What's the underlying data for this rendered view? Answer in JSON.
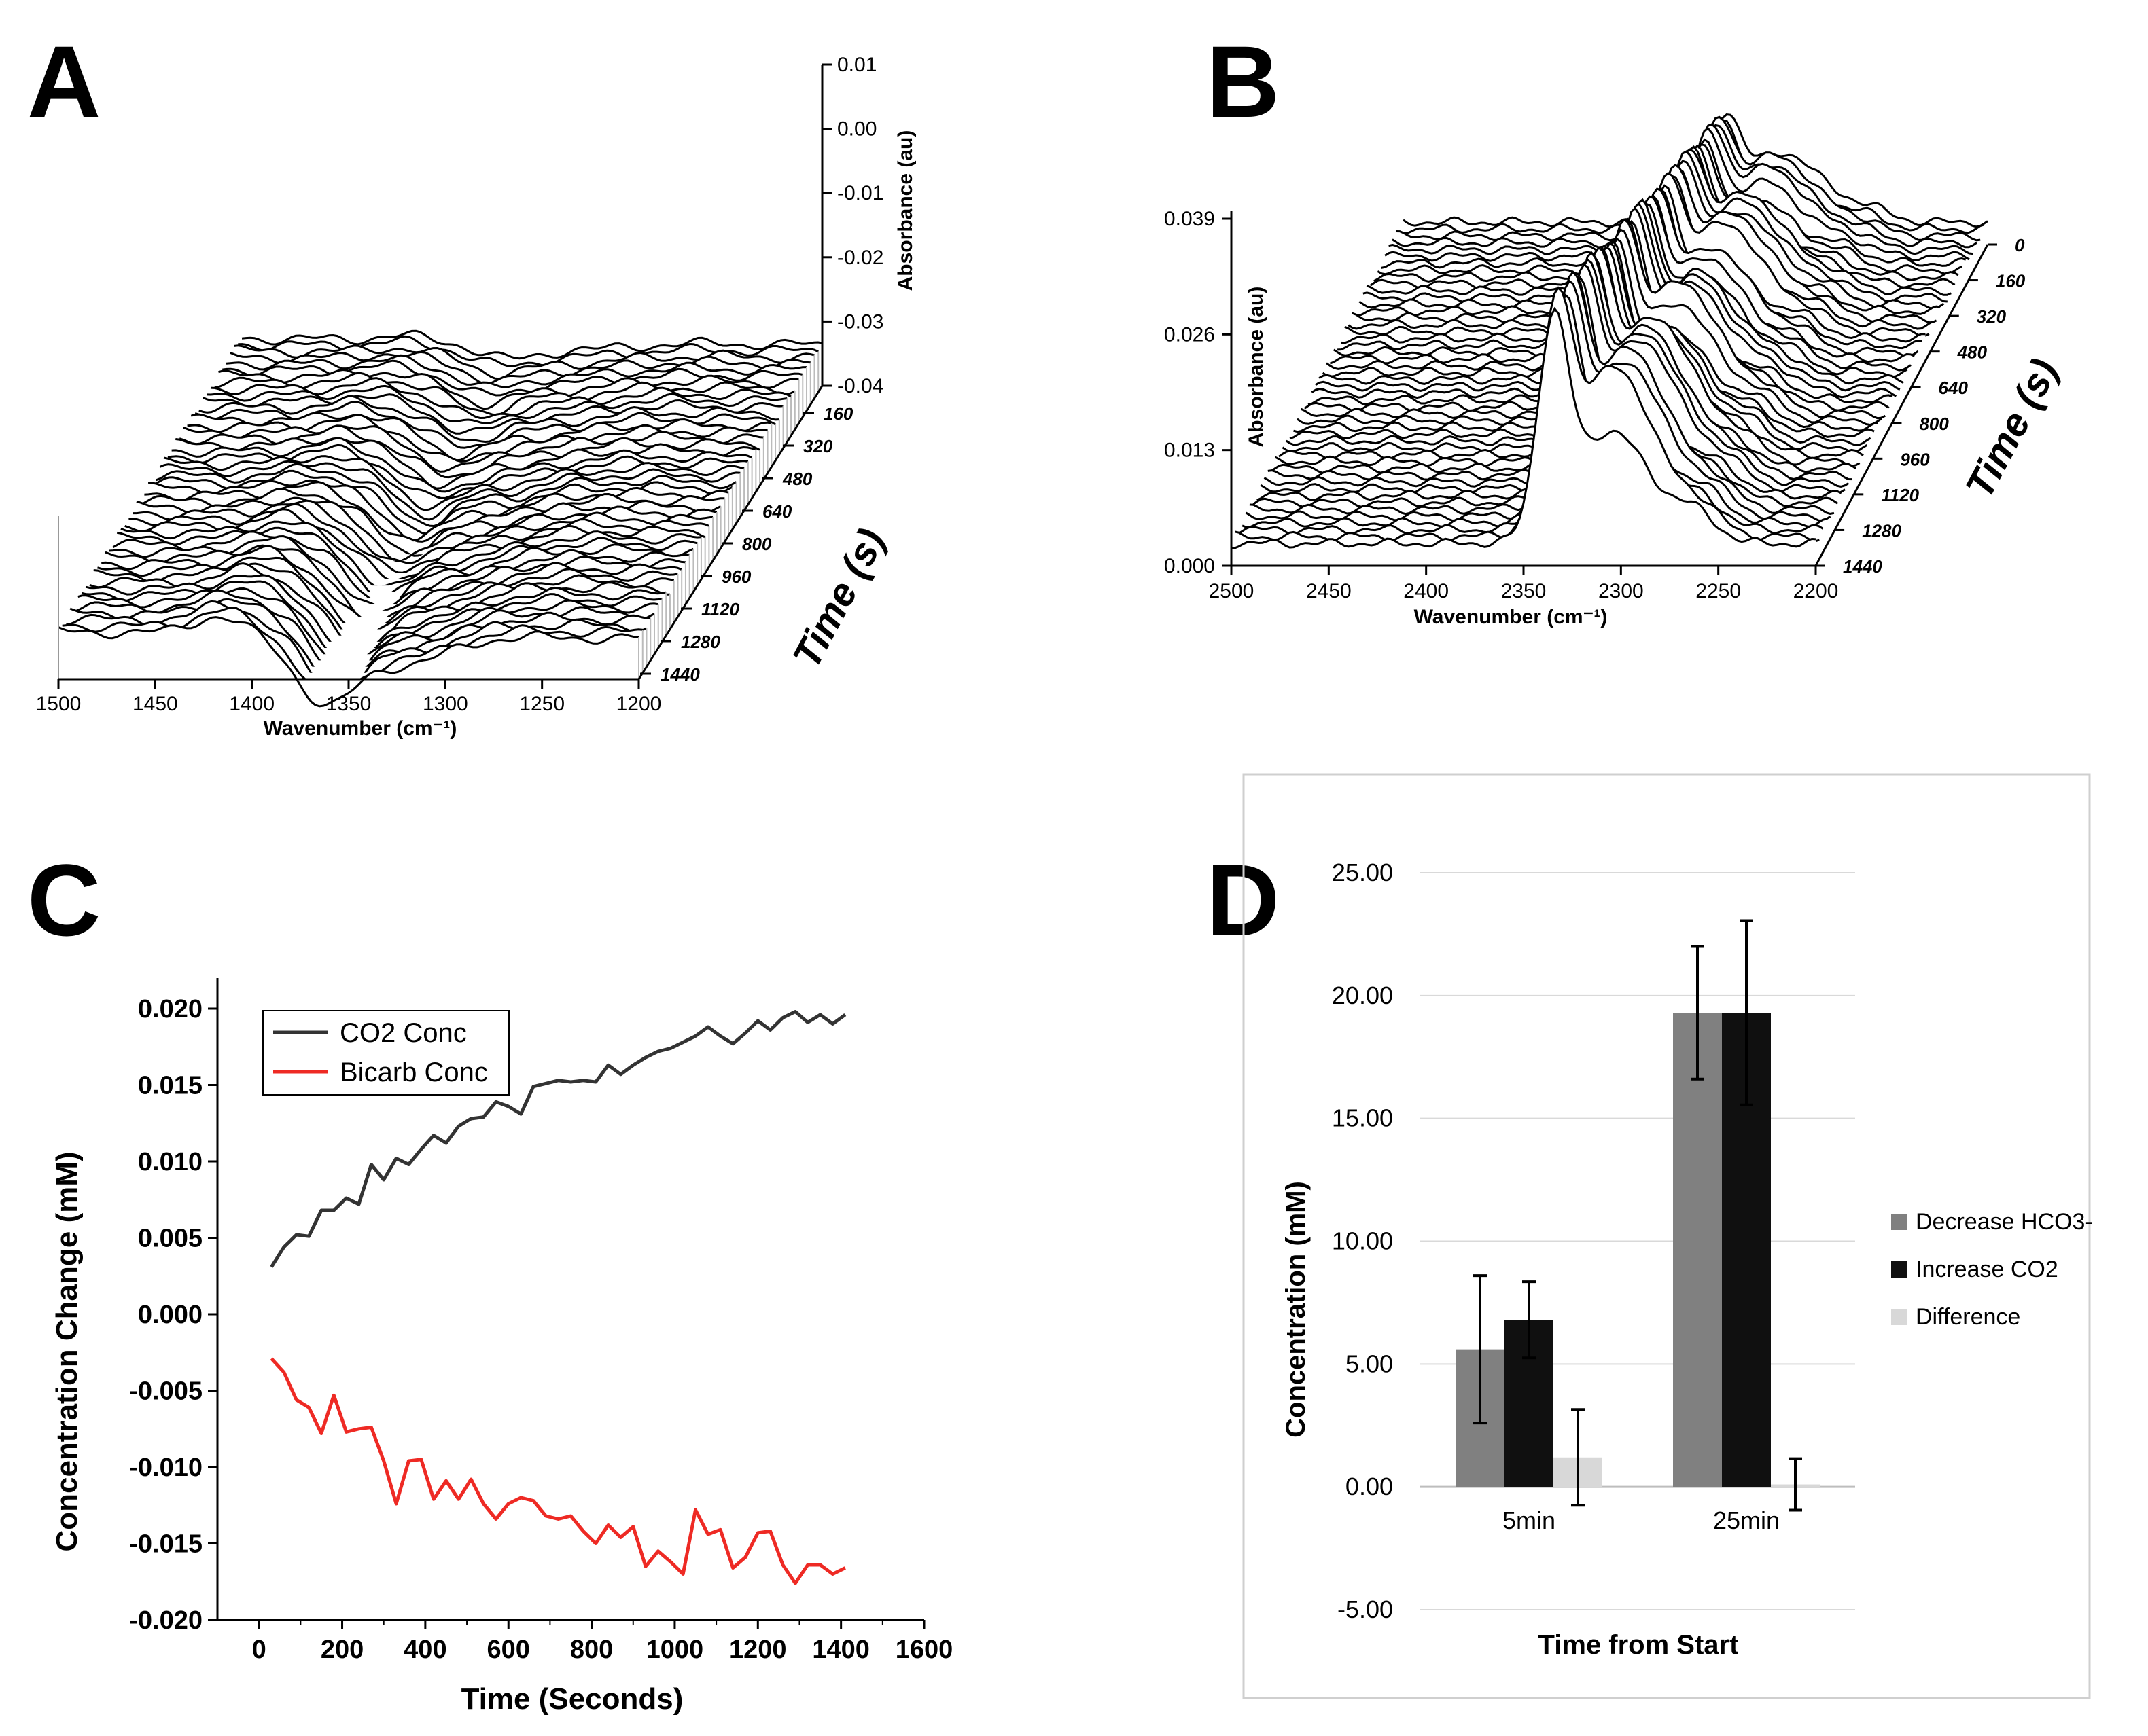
{
  "panels": {
    "A": "A",
    "B": "B",
    "C": "C",
    "D": "D"
  },
  "chart_data": [
    {
      "id": "A",
      "type": "line",
      "subtype": "3d-waterfall",
      "title": "",
      "xlabel": "Wavenumber (cm⁻¹)",
      "zlabel": "Absorbance (au)",
      "ylabel": "Time (s)",
      "xlim": [
        1500,
        1200
      ],
      "x_ticks": [
        "1500",
        "1450",
        "1400",
        "1350",
        "1300",
        "1250",
        "1200"
      ],
      "z_ticks": [
        "0.01",
        "0.00",
        "-0.01",
        "-0.02",
        "-0.03",
        "-0.04"
      ],
      "time_ticks": [
        "160",
        "320",
        "480",
        "640",
        "800",
        "960",
        "1120",
        "1280",
        "1440"
      ],
      "n_traces": 48,
      "features": "broad negative absorbance band near 1360 cm⁻¹ deepening over time"
    },
    {
      "id": "B",
      "type": "line",
      "subtype": "3d-waterfall",
      "title": "",
      "xlabel": "Wavenumber (cm⁻¹)",
      "zlabel": "Absorbance (au)",
      "ylabel": "Time (s)",
      "xlim": [
        2500,
        2200
      ],
      "x_ticks": [
        "2500",
        "2450",
        "2400",
        "2350",
        "2300",
        "2250",
        "2200"
      ],
      "z_ticks": [
        "0.039",
        "0.026",
        "0.013",
        "0.000"
      ],
      "time_ticks": [
        "0",
        "160",
        "320",
        "480",
        "640",
        "800",
        "960",
        "1120",
        "1280",
        "1440"
      ],
      "n_traces": 48,
      "features": "CO2 absorbance band near 2340 cm⁻¹ growing over time"
    },
    {
      "id": "C",
      "type": "line",
      "title": "",
      "xlabel": "Time (Seconds)",
      "ylabel": "Concentration Change (mM)",
      "xlim": [
        -100,
        1600
      ],
      "ylim": [
        -0.02,
        0.022
      ],
      "x_ticks": [
        "0",
        "200",
        "400",
        "600",
        "800",
        "1000",
        "1200",
        "1400",
        "1600"
      ],
      "y_ticks": [
        "0.020",
        "0.015",
        "0.010",
        "0.005",
        "0.000",
        "-0.005",
        "-0.010",
        "-0.015",
        "-0.020"
      ],
      "x": [
        30,
        60,
        90,
        120,
        150,
        180,
        210,
        240,
        270,
        300,
        330,
        360,
        390,
        420,
        450,
        480,
        510,
        540,
        570,
        600,
        630,
        660,
        690,
        720,
        750,
        780,
        810,
        840,
        870,
        900,
        930,
        960,
        990,
        1020,
        1050,
        1080,
        1110,
        1140,
        1170,
        1200,
        1230,
        1260,
        1290,
        1320,
        1350,
        1380,
        1410
      ],
      "series": [
        {
          "name": "CO2 Conc",
          "color": "#333333",
          "values": [
            0.0031,
            0.0044,
            0.0052,
            0.0051,
            0.0068,
            0.0068,
            0.0076,
            0.0072,
            0.0098,
            0.0088,
            0.0102,
            0.0098,
            0.0108,
            0.0117,
            0.0112,
            0.0123,
            0.0128,
            0.0129,
            0.0139,
            0.0136,
            0.0131,
            0.0149,
            0.0151,
            0.0153,
            0.0152,
            0.0153,
            0.0152,
            0.0163,
            0.0157,
            0.0163,
            0.0168,
            0.0172,
            0.0174,
            0.0178,
            0.0182,
            0.0188,
            0.0182,
            0.0177,
            0.0184,
            0.0192,
            0.0186,
            0.0194,
            0.0198,
            0.0191,
            0.0196,
            0.019,
            0.0196
          ]
        },
        {
          "name": "Bicarb Conc",
          "color": "#ee2a24",
          "values": [
            -0.0029,
            -0.0038,
            -0.0056,
            -0.0061,
            -0.0078,
            -0.0053,
            -0.0077,
            -0.0075,
            -0.0074,
            -0.0096,
            -0.0124,
            -0.0096,
            -0.0095,
            -0.0121,
            -0.0109,
            -0.0121,
            -0.0108,
            -0.0124,
            -0.0134,
            -0.0124,
            -0.012,
            -0.0122,
            -0.0132,
            -0.0134,
            -0.0132,
            -0.0142,
            -0.015,
            -0.0138,
            -0.0146,
            -0.0139,
            -0.0165,
            -0.0155,
            -0.0162,
            -0.017,
            -0.0128,
            -0.0144,
            -0.0141,
            -0.0166,
            -0.0159,
            -0.0143,
            -0.0142,
            -0.0164,
            -0.0176,
            -0.0164,
            -0.0164,
            -0.017,
            -0.0166
          ]
        }
      ],
      "legend": "top-left"
    },
    {
      "id": "D",
      "type": "bar",
      "title": "",
      "xlabel": "Time from Start",
      "ylabel": "Concentration (mM)",
      "ylim": [
        -5,
        25
      ],
      "y_ticks": [
        "25.00",
        "20.00",
        "15.00",
        "10.00",
        "5.00",
        "0.00",
        "-5.00"
      ],
      "categories": [
        "5min",
        "25min"
      ],
      "series": [
        {
          "name": "Decrease HCO3-",
          "color": "#808080",
          "values": [
            5.6,
            19.3
          ],
          "errors": [
            3.0,
            2.7
          ]
        },
        {
          "name": "Increase CO2",
          "color": "#101010",
          "values": [
            6.8,
            19.3
          ],
          "errors": [
            1.55,
            3.75
          ]
        },
        {
          "name": "Difference",
          "color": "#d8d8d8",
          "values": [
            1.2,
            0.1
          ],
          "errors": [
            1.95,
            1.05
          ]
        }
      ],
      "legend": "right"
    }
  ]
}
